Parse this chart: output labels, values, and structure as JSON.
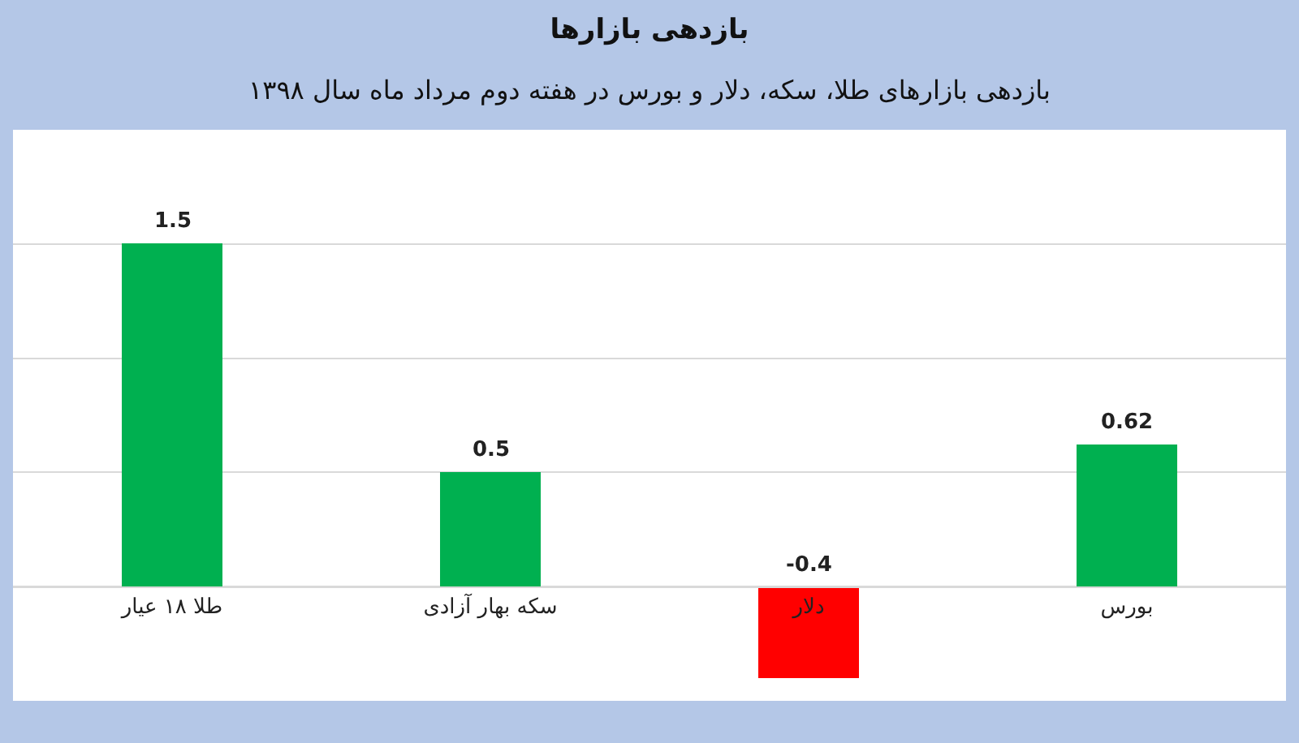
{
  "chart_data": {
    "type": "bar",
    "title": "بازدهی بازارها",
    "subtitle": "بازدهی بازارهای طلا، سکه، دلار و بورس در هفته دوم مرداد ماه سال ۱۳۹۸",
    "categories": [
      "طلا ۱۸ عیار",
      "سکه بهار آزادی",
      "دلار",
      "بورس"
    ],
    "values": [
      1.5,
      0.5,
      -0.4,
      0.62
    ],
    "colors": [
      "#00b050",
      "#00b050",
      "#ff0000",
      "#00b050"
    ],
    "ylim": [
      -0.5,
      2
    ],
    "yticks": [
      {
        "value": 0,
        "label": null
      },
      {
        "value": 0.5,
        "label": null
      },
      {
        "value": 1,
        "label": null
      },
      {
        "value": 1.5,
        "label": null
      }
    ],
    "grid": "y",
    "tick_labels": "x",
    "data_labels": true
  }
}
